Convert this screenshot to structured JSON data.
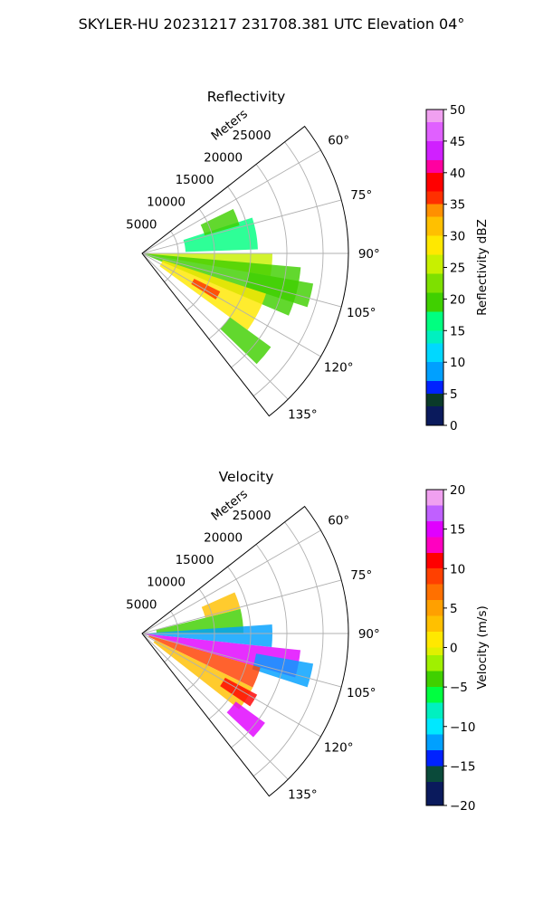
{
  "figure_title": "SKYLER-HU  20231217  231708.381 UTC Elevation 04°",
  "chart_data": [
    {
      "type": "heatmap",
      "projection": "polar-sector",
      "title": "Reflectivity",
      "radial_label": "Meters",
      "radial_ticks": [
        5000,
        10000,
        15000,
        20000,
        25000
      ],
      "radial_range": [
        0,
        28500
      ],
      "angle_ticks": [
        "60°",
        "75°",
        "90°",
        "105°",
        "120°",
        "135°"
      ],
      "angle_range_deg": [
        52,
        142
      ],
      "grid": true,
      "colorbar": {
        "label": "Reflectivity dBZ",
        "range": [
          0,
          50
        ],
        "ticks": [
          "0",
          "5",
          "10",
          "15",
          "20",
          "25",
          "30",
          "35",
          "40",
          "45",
          "50"
        ]
      },
      "echo_regions": [
        {
          "from_deg": 90,
          "to_deg": 100,
          "r_min": 0,
          "r_max": 18000,
          "value": 26
        },
        {
          "from_deg": 100,
          "to_deg": 108,
          "r_min": 15000,
          "r_max": 24000,
          "value": 18
        },
        {
          "from_deg": 95,
          "to_deg": 113,
          "r_min": 0,
          "r_max": 22000,
          "value": 19
        },
        {
          "from_deg": 108,
          "to_deg": 126,
          "r_min": 3000,
          "r_max": 18000,
          "value": 27
        },
        {
          "from_deg": 116,
          "to_deg": 122,
          "r_min": 8000,
          "r_max": 12000,
          "value": 36
        },
        {
          "from_deg": 126,
          "to_deg": 134,
          "r_min": 15000,
          "r_max": 22000,
          "value": 20
        },
        {
          "from_deg": 72,
          "to_deg": 88,
          "r_min": 6000,
          "r_max": 16000,
          "value": 16
        },
        {
          "from_deg": 64,
          "to_deg": 74,
          "r_min": 9000,
          "r_max": 14000,
          "value": 19
        }
      ]
    },
    {
      "type": "heatmap",
      "projection": "polar-sector",
      "title": "Velocity",
      "radial_label": "Meters",
      "radial_ticks": [
        5000,
        10000,
        15000,
        20000,
        25000
      ],
      "radial_range": [
        0,
        28500
      ],
      "angle_ticks": [
        "60°",
        "75°",
        "90°",
        "105°",
        "120°",
        "135°"
      ],
      "angle_range_deg": [
        52,
        142
      ],
      "grid": true,
      "colorbar": {
        "label": "Velocity (m/s)",
        "range": [
          -20,
          20
        ],
        "ticks": [
          "−20",
          "−15",
          "−10",
          "−5",
          "0",
          "5",
          "10",
          "15",
          "20"
        ]
      },
      "echo_regions": [
        {
          "from_deg": 66,
          "to_deg": 76,
          "r_min": 9000,
          "r_max": 14000,
          "value": 2
        },
        {
          "from_deg": 76,
          "to_deg": 90,
          "r_min": 2000,
          "r_max": 14000,
          "value": -5
        },
        {
          "from_deg": 86,
          "to_deg": 96,
          "r_min": 0,
          "r_max": 18000,
          "value": -12
        },
        {
          "from_deg": 96,
          "to_deg": 106,
          "r_min": 0,
          "r_max": 22000,
          "value": 14
        },
        {
          "from_deg": 100,
          "to_deg": 108,
          "r_min": 16000,
          "r_max": 24000,
          "value": -12
        },
        {
          "from_deg": 106,
          "to_deg": 116,
          "r_min": 1000,
          "r_max": 17000,
          "value": 9
        },
        {
          "from_deg": 116,
          "to_deg": 128,
          "r_min": 2000,
          "r_max": 17000,
          "value": 3
        },
        {
          "from_deg": 118,
          "to_deg": 124,
          "r_min": 13000,
          "r_max": 18000,
          "value": 11
        },
        {
          "from_deg": 126,
          "to_deg": 133,
          "r_min": 16000,
          "r_max": 21000,
          "value": 15
        }
      ]
    }
  ]
}
